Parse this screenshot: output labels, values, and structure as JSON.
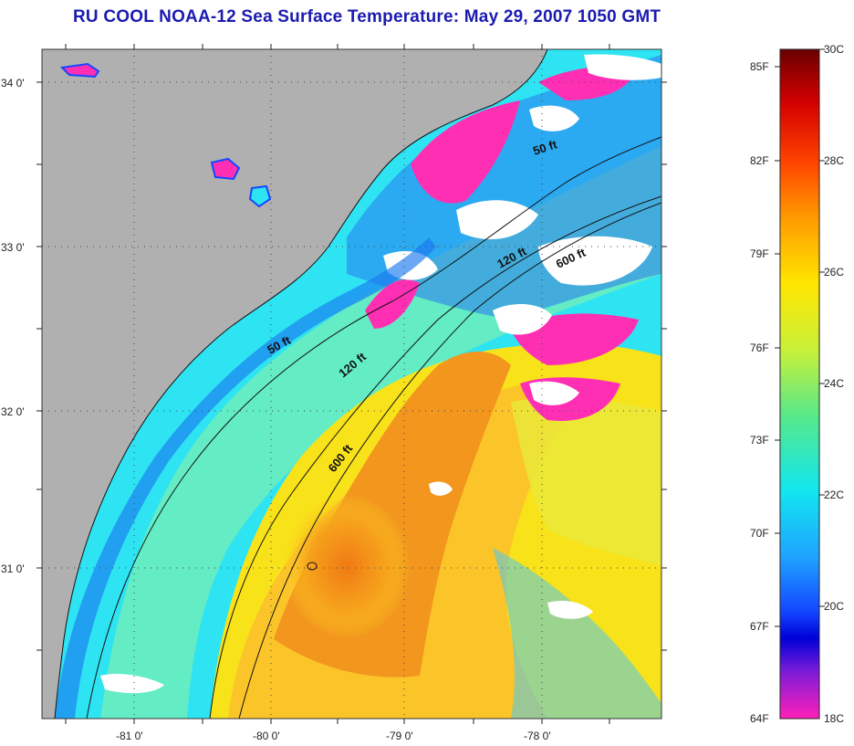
{
  "title": "RU COOL  NOAA-12  Sea Surface Temperature:  May 29, 2007 1050 GMT",
  "map": {
    "lat_labels": [
      "34 0'",
      "33 0'",
      "32 0'",
      "31 0'"
    ],
    "lon_labels": [
      "-81 0'",
      "-80 0'",
      "-79 0'",
      "-78 0'"
    ],
    "isobath_labels": [
      "50 ft",
      "50 ft",
      "120 ft",
      "120 ft",
      "600 ft",
      "600 ft"
    ]
  },
  "colorbar": {
    "f_labels": [
      "85F",
      "82F",
      "79F",
      "76F",
      "73F",
      "70F",
      "67F",
      "64F"
    ],
    "c_labels": [
      "30C",
      "28C",
      "26C",
      "24C",
      "22C",
      "20C",
      "18C"
    ],
    "gradient_colors": [
      "#6b0000",
      "#d40000",
      "#ff4400",
      "#ff9900",
      "#ffe600",
      "#c8f03a",
      "#55e88c",
      "#12e6f0",
      "#1fa2ff",
      "#1346ff",
      "#0000d8",
      "#7d1cd8",
      "#ff1fb8"
    ]
  },
  "colors": {
    "title": "#1b1bb0",
    "land": "#b0b0b0",
    "cloud": "#ffffff",
    "cold_water": "#ff2fb4"
  }
}
